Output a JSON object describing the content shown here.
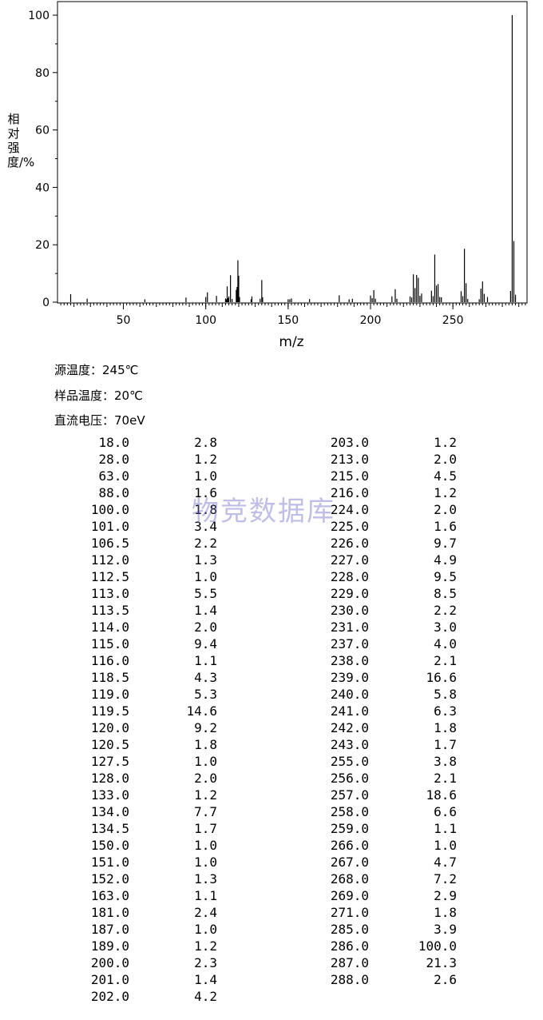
{
  "chart_data": {
    "type": "bar",
    "xlabel": "m/z",
    "ylabel": "相对强度/%",
    "xlim": [
      10,
      295
    ],
    "ylim": [
      0,
      100
    ],
    "xticks": [
      50,
      100,
      150,
      200,
      250
    ],
    "yticks": [
      0,
      20,
      40,
      60,
      80,
      100
    ],
    "grid": false,
    "x": [
      18.0,
      28.0,
      63.0,
      88.0,
      100.0,
      101.0,
      106.5,
      112.0,
      112.5,
      113.0,
      113.5,
      114.0,
      115.0,
      116.0,
      118.5,
      119.0,
      119.5,
      120.0,
      120.5,
      127.5,
      128.0,
      133.0,
      134.0,
      134.5,
      150.0,
      151.0,
      152.0,
      163.0,
      181.0,
      187.0,
      189.0,
      200.0,
      201.0,
      202.0,
      203.0,
      213.0,
      215.0,
      216.0,
      224.0,
      225.0,
      226.0,
      227.0,
      228.0,
      229.0,
      230.0,
      231.0,
      237.0,
      238.0,
      239.0,
      240.0,
      241.0,
      242.0,
      243.0,
      255.0,
      256.0,
      257.0,
      258.0,
      259.0,
      266.0,
      267.0,
      268.0,
      269.0,
      271.0,
      285.0,
      286.0,
      287.0,
      288.0
    ],
    "values": [
      2.8,
      1.2,
      1.0,
      1.6,
      1.8,
      3.4,
      2.2,
      1.3,
      1.0,
      5.5,
      1.4,
      2.0,
      9.4,
      1.1,
      4.3,
      5.3,
      14.6,
      9.2,
      1.8,
      1.0,
      2.0,
      1.2,
      7.7,
      1.7,
      1.0,
      1.0,
      1.3,
      1.1,
      2.4,
      1.0,
      1.2,
      2.3,
      1.4,
      4.2,
      1.2,
      2.0,
      4.5,
      1.2,
      2.0,
      1.6,
      9.7,
      4.9,
      9.5,
      8.5,
      2.2,
      3.0,
      4.0,
      2.1,
      16.6,
      5.8,
      6.3,
      1.8,
      1.7,
      3.8,
      2.1,
      18.6,
      6.6,
      1.1,
      1.0,
      4.7,
      7.2,
      2.9,
      1.8,
      3.9,
      100.0,
      21.3,
      2.6
    ]
  },
  "conditions": {
    "source_temp": "源温度：245℃",
    "sample_temp": "样品温度：20℃",
    "voltage": "直流电压：70eV"
  },
  "table": {
    "left": [
      [
        "18.0",
        "2.8"
      ],
      [
        "28.0",
        "1.2"
      ],
      [
        "63.0",
        "1.0"
      ],
      [
        "88.0",
        "1.6"
      ],
      [
        "100.0",
        "1.8"
      ],
      [
        "101.0",
        "3.4"
      ],
      [
        "106.5",
        "2.2"
      ],
      [
        "112.0",
        "1.3"
      ],
      [
        "112.5",
        "1.0"
      ],
      [
        "113.0",
        "5.5"
      ],
      [
        "113.5",
        "1.4"
      ],
      [
        "114.0",
        "2.0"
      ],
      [
        "115.0",
        "9.4"
      ],
      [
        "116.0",
        "1.1"
      ],
      [
        "118.5",
        "4.3"
      ],
      [
        "119.0",
        "5.3"
      ],
      [
        "119.5",
        "14.6"
      ],
      [
        "120.0",
        "9.2"
      ],
      [
        "120.5",
        "1.8"
      ],
      [
        "127.5",
        "1.0"
      ],
      [
        "128.0",
        "2.0"
      ],
      [
        "133.0",
        "1.2"
      ],
      [
        "134.0",
        "7.7"
      ],
      [
        "134.5",
        "1.7"
      ],
      [
        "150.0",
        "1.0"
      ],
      [
        "151.0",
        "1.0"
      ],
      [
        "152.0",
        "1.3"
      ],
      [
        "163.0",
        "1.1"
      ],
      [
        "181.0",
        "2.4"
      ],
      [
        "187.0",
        "1.0"
      ],
      [
        "189.0",
        "1.2"
      ],
      [
        "200.0",
        "2.3"
      ],
      [
        "201.0",
        "1.4"
      ],
      [
        "202.0",
        "4.2"
      ]
    ],
    "right": [
      [
        "203.0",
        "1.2"
      ],
      [
        "213.0",
        "2.0"
      ],
      [
        "215.0",
        "4.5"
      ],
      [
        "216.0",
        "1.2"
      ],
      [
        "224.0",
        "2.0"
      ],
      [
        "225.0",
        "1.6"
      ],
      [
        "226.0",
        "9.7"
      ],
      [
        "227.0",
        "4.9"
      ],
      [
        "228.0",
        "9.5"
      ],
      [
        "229.0",
        "8.5"
      ],
      [
        "230.0",
        "2.2"
      ],
      [
        "231.0",
        "3.0"
      ],
      [
        "237.0",
        "4.0"
      ],
      [
        "238.0",
        "2.1"
      ],
      [
        "239.0",
        "16.6"
      ],
      [
        "240.0",
        "5.8"
      ],
      [
        "241.0",
        "6.3"
      ],
      [
        "242.0",
        "1.8"
      ],
      [
        "243.0",
        "1.7"
      ],
      [
        "255.0",
        "3.8"
      ],
      [
        "256.0",
        "2.1"
      ],
      [
        "257.0",
        "18.6"
      ],
      [
        "258.0",
        "6.6"
      ],
      [
        "259.0",
        "1.1"
      ],
      [
        "266.0",
        "1.0"
      ],
      [
        "267.0",
        "4.7"
      ],
      [
        "268.0",
        "7.2"
      ],
      [
        "269.0",
        "2.9"
      ],
      [
        "271.0",
        "1.8"
      ],
      [
        "285.0",
        "3.9"
      ],
      [
        "286.0",
        "100.0"
      ],
      [
        "287.0",
        "21.3"
      ],
      [
        "288.0",
        "2.6"
      ]
    ]
  },
  "watermark": "物竞数据库"
}
